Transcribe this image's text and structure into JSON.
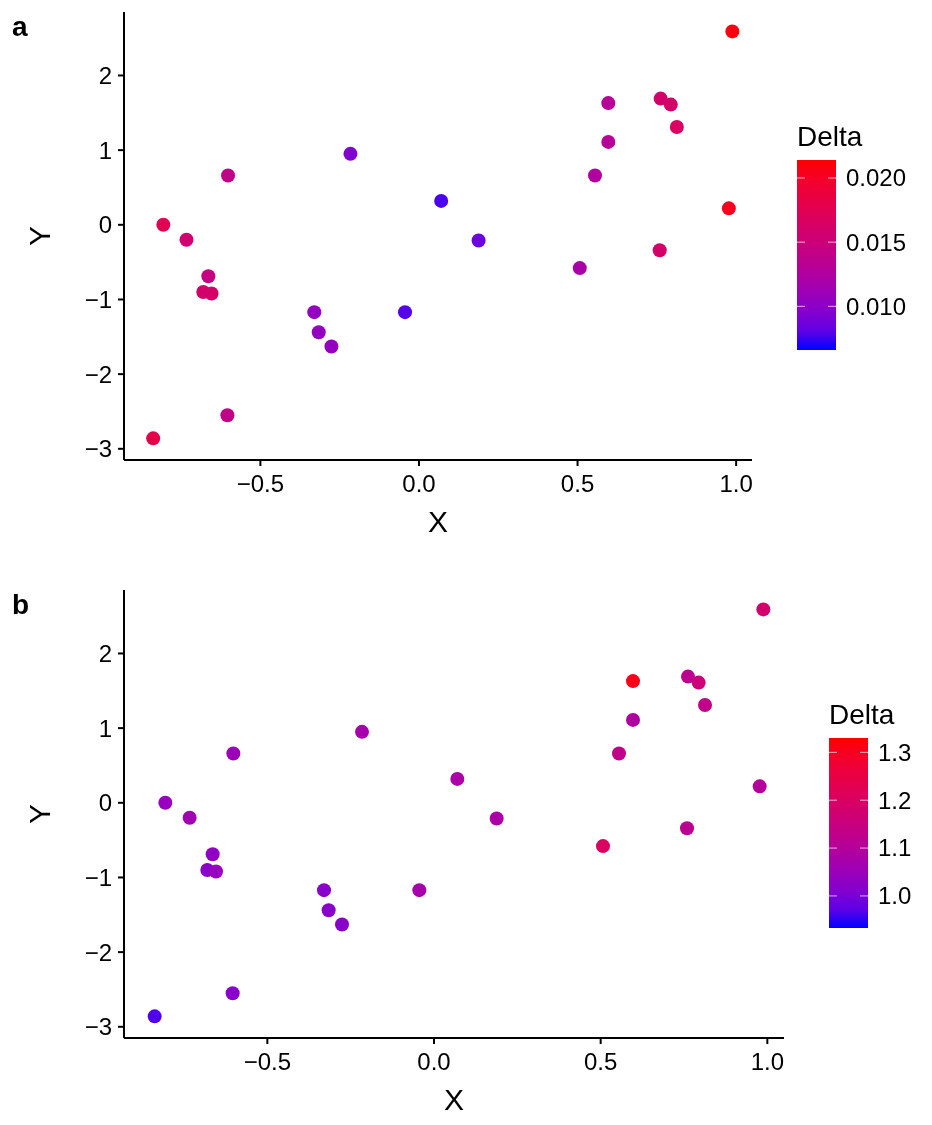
{
  "chart_data": [
    {
      "type": "scatter",
      "title": "a",
      "xlabel": "X",
      "ylabel": "Y",
      "clabel": "Delta",
      "xlim": [
        -0.93,
        1.05
      ],
      "ylim": [
        -3.15,
        2.85
      ],
      "xticks": [
        {
          "value": -0.5,
          "label": "−0.5"
        },
        {
          "value": 0,
          "label": "0.0"
        },
        {
          "value": 0.5,
          "label": "0.5"
        },
        {
          "value": 1,
          "label": "1.0"
        }
      ],
      "yticks": [
        {
          "value": -3,
          "label": "−3"
        },
        {
          "value": -2,
          "label": "−2"
        },
        {
          "value": -1,
          "label": "−1"
        },
        0,
        1,
        2
      ],
      "clim": [
        0.0066,
        0.0214
      ],
      "cticks": [
        {
          "value": 0.01,
          "label": "0.010"
        },
        {
          "value": 0.015,
          "label": "0.015"
        },
        {
          "value": 0.02,
          "label": "0.020"
        }
      ],
      "marker": "circle",
      "grid": false,
      "x": [
        0.988,
        0.597,
        0.762,
        0.794,
        0.813,
        0.597,
        0.555,
        0.977,
        0.759,
        0.507,
        0.07,
        0.188,
        -0.044,
        -0.216,
        -0.33,
        -0.316,
        -0.276,
        -0.602,
        -0.604,
        -0.838,
        -0.806,
        -0.733,
        -0.664,
        -0.68,
        -0.654
      ],
      "values": [
        2.59,
        1.63,
        1.69,
        1.61,
        1.31,
        1.11,
        0.66,
        0.22,
        -0.34,
        -0.58,
        0.32,
        -0.21,
        -1.17,
        0.95,
        -1.17,
        -1.44,
        -1.63,
        0.66,
        -2.55,
        -2.86,
        0.0,
        -0.2,
        -0.69,
        -0.9,
        -0.92
      ],
      "cvalues": [
        0.021,
        0.013,
        0.016,
        0.016,
        0.0165,
        0.013,
        0.0125,
        0.0205,
        0.016,
        0.012,
        0.0075,
        0.0085,
        0.0078,
        0.0095,
        0.0105,
        0.0105,
        0.0105,
        0.014,
        0.014,
        0.018,
        0.0175,
        0.0155,
        0.0145,
        0.016,
        0.016
      ]
    },
    {
      "type": "scatter",
      "title": "b",
      "xlabel": "X",
      "ylabel": "Y",
      "clabel": "Delta",
      "xlim": [
        -0.93,
        1.05
      ],
      "ylim": [
        -3.15,
        2.85
      ],
      "xticks": [
        {
          "value": -0.5,
          "label": "−0.5"
        },
        {
          "value": 0,
          "label": "0.0"
        },
        {
          "value": 0.5,
          "label": "0.5"
        },
        {
          "value": 1,
          "label": "1.0"
        }
      ],
      "yticks": [
        {
          "value": -3,
          "label": "−3"
        },
        {
          "value": -2,
          "label": "−2"
        },
        {
          "value": -1,
          "label": "−1"
        },
        0,
        1,
        2
      ],
      "clim": [
        0.933,
        1.33
      ],
      "cticks": [
        {
          "value": 1,
          "label": "1.0"
        },
        1.1,
        1.2,
        1.3
      ],
      "marker": "circle",
      "grid": false,
      "x": [
        0.988,
        0.597,
        0.762,
        0.794,
        0.813,
        0.597,
        0.555,
        0.977,
        0.759,
        0.507,
        0.07,
        0.188,
        -0.044,
        -0.216,
        -0.33,
        -0.316,
        -0.276,
        -0.602,
        -0.604,
        -0.838,
        -0.806,
        -0.733,
        -0.664,
        -0.68,
        -0.654
      ],
      "values": [
        2.59,
        1.63,
        1.69,
        1.61,
        1.31,
        1.11,
        0.66,
        0.22,
        -0.34,
        -0.58,
        0.32,
        -0.21,
        -1.17,
        0.95,
        -1.17,
        -1.44,
        -1.63,
        0.66,
        -2.55,
        -2.86,
        0.0,
        -0.2,
        -0.69,
        -0.9,
        -0.92
      ],
      "cvalues": [
        1.18,
        1.31,
        1.12,
        1.16,
        1.13,
        1.09,
        1.13,
        1.1,
        1.12,
        1.2,
        1.08,
        1.08,
        1.07,
        1.07,
        1.02,
        1.02,
        1.02,
        1.05,
        1.02,
        0.96,
        1.04,
        1.06,
        1.03,
        1.02,
        1.04
      ]
    }
  ]
}
